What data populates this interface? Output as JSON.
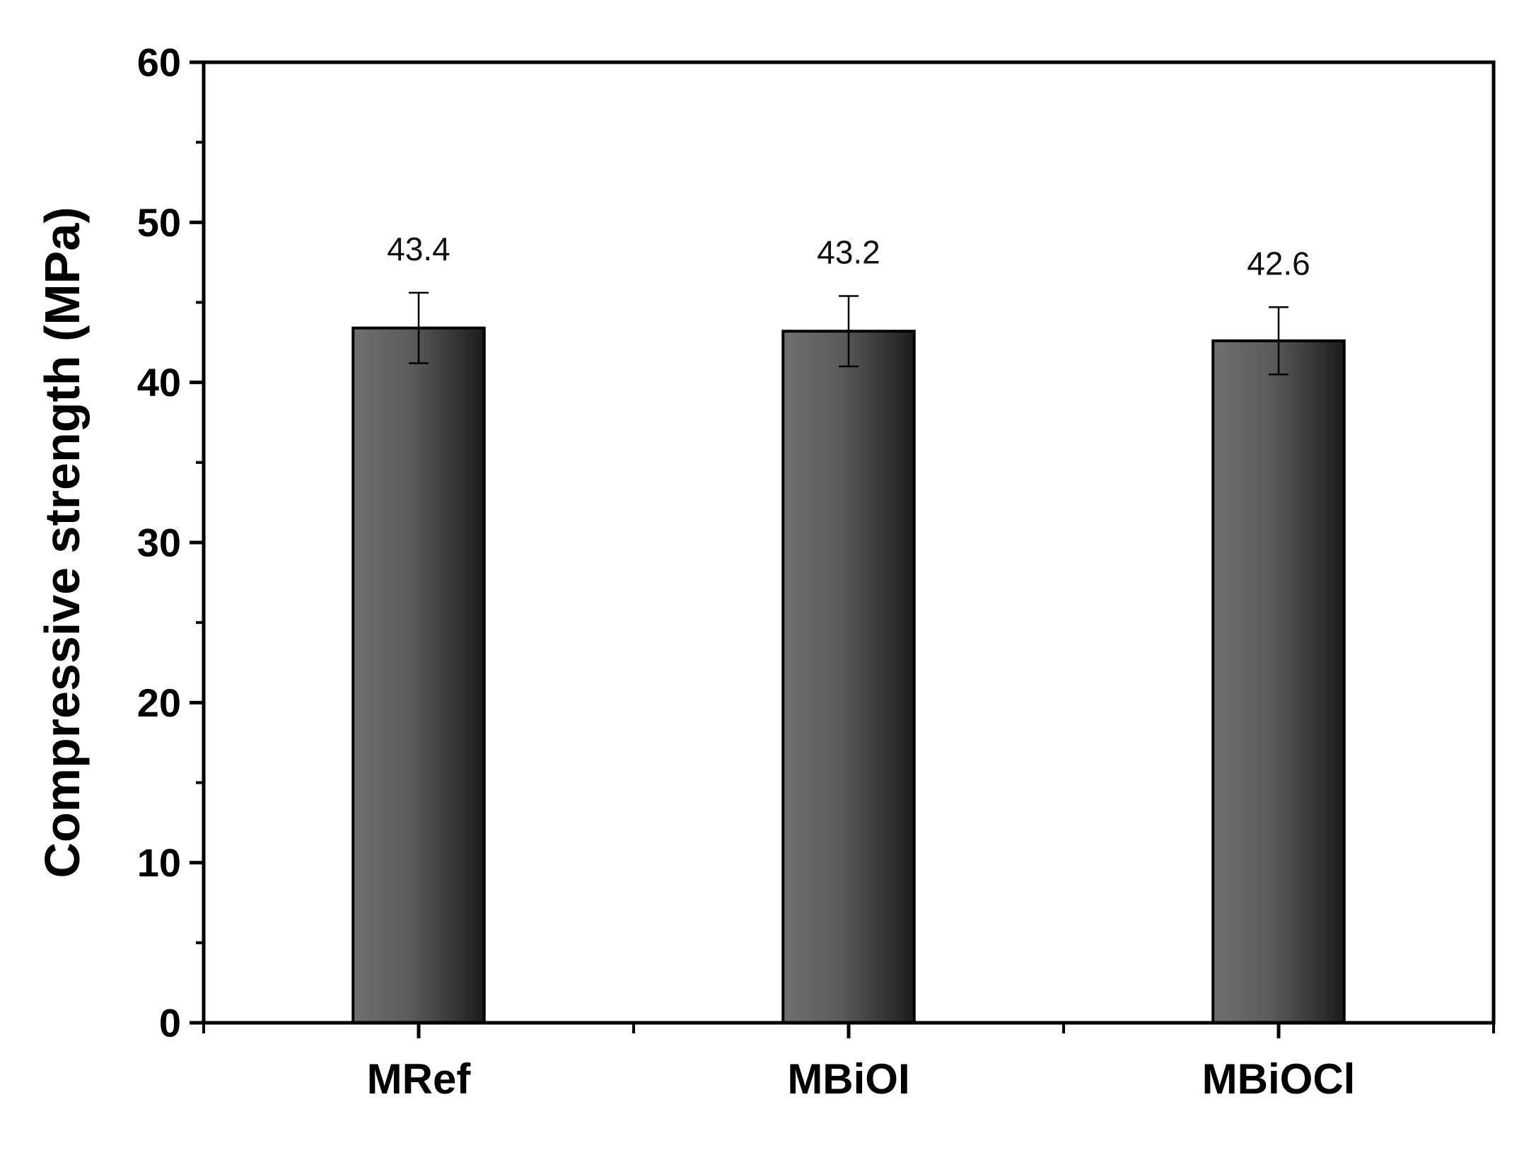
{
  "chart_data": {
    "type": "bar",
    "title": "",
    "xlabel": "",
    "ylabel": "Compressive strength (MPa)",
    "ylim": [
      0,
      60
    ],
    "yticks": [
      0,
      10,
      20,
      30,
      40,
      50,
      60
    ],
    "categories": [
      "MRef",
      "MBiOI",
      "MBiOCl"
    ],
    "values": [
      43.4,
      43.2,
      42.6
    ],
    "data_labels": [
      "43.4",
      "43.2",
      "42.6"
    ],
    "error": [
      2.2,
      2.2,
      2.1
    ],
    "grid": false,
    "legend": "none",
    "bar_color": "#555555"
  }
}
